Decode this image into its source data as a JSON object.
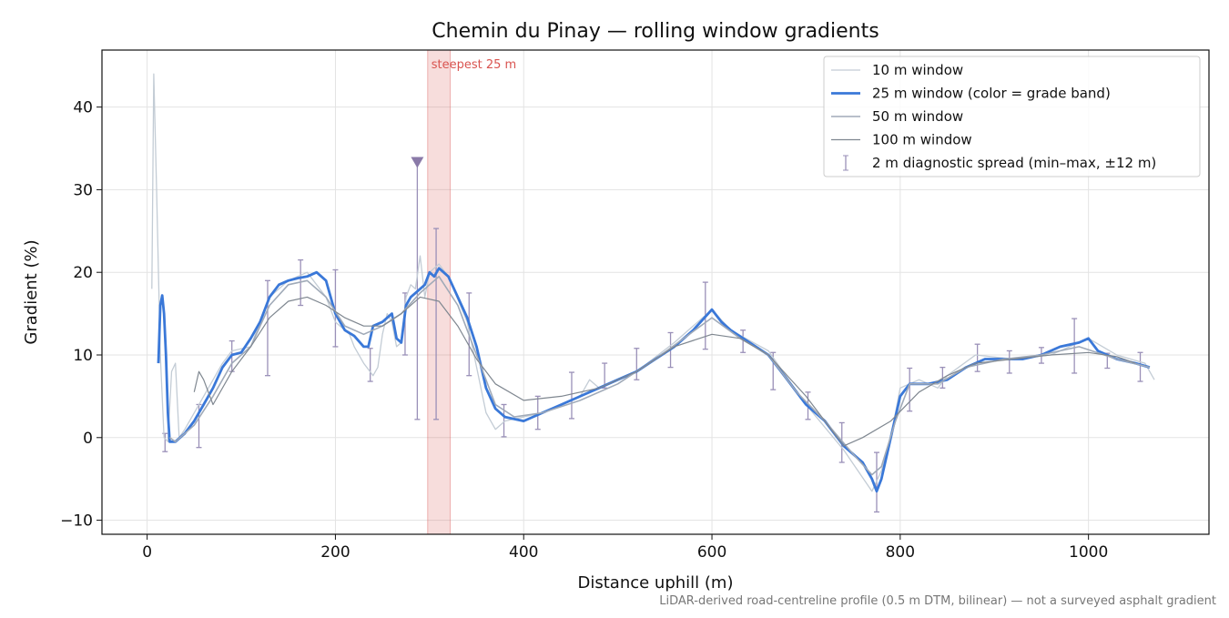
{
  "chart_data": {
    "type": "line",
    "title": "Chemin du Pinay — rolling window gradients",
    "xlabel": "Distance uphill (m)",
    "ylabel": "Gradient (%)",
    "footnote": "LiDAR-derived road-centreline profile (0.5 m DTM, bilinear) — not a surveyed asphalt gradient",
    "xlim": [
      -48,
      1128
    ],
    "ylim": [
      -11.7,
      46.9
    ],
    "xticks": [
      0,
      200,
      400,
      600,
      800,
      1000
    ],
    "yticks": [
      {
        "value": -10,
        "label": "−10"
      },
      0,
      10,
      20,
      30,
      40
    ],
    "grid": true,
    "legend": "upper right",
    "highlight": {
      "xrange": [
        298,
        322
      ],
      "label": "steepest 25 m",
      "color": "#d9534f"
    },
    "peak_marker": {
      "x": 287,
      "y": 33.3,
      "color": "#8a7aa8"
    },
    "series": [
      {
        "name": "10 m window",
        "color": "#c3ccd5",
        "width": 1.3,
        "x": [
          5,
          7,
          10,
          14,
          18,
          22,
          26,
          30,
          34,
          40,
          60,
          80,
          90,
          110,
          130,
          150,
          170,
          190,
          200,
          215,
          220,
          230,
          240,
          245,
          250,
          255,
          260,
          265,
          270,
          275,
          280,
          285,
          290,
          295,
          300,
          310,
          320,
          340,
          360,
          370,
          380,
          420,
          460,
          470,
          480,
          520,
          560,
          600,
          620,
          660,
          700,
          740,
          770,
          780,
          790,
          800,
          820,
          840,
          850,
          880,
          920,
          960,
          1000,
          1030,
          1060,
          1070
        ],
        "values": [
          18,
          44,
          30,
          10,
          0,
          -0.5,
          8,
          9,
          0,
          1,
          5,
          9,
          10.5,
          11,
          17,
          19,
          20,
          17,
          14,
          12.5,
          11,
          9,
          7.5,
          8.5,
          12.5,
          15,
          14,
          11,
          11.5,
          17,
          18.5,
          18,
          22,
          17,
          20,
          21,
          19.5,
          14,
          3,
          1,
          2,
          3,
          5,
          7,
          6,
          8,
          11.5,
          15.5,
          13,
          10.5,
          4,
          -1.5,
          -6.5,
          -4,
          0,
          6,
          7,
          6,
          7.5,
          10,
          9.5,
          10,
          12,
          10,
          9,
          7
        ]
      },
      {
        "name": "25 m window (color = grade band)",
        "color": "#3a78d8",
        "width": 2.8,
        "x": [
          12,
          14,
          16,
          18,
          20,
          22,
          24,
          30,
          40,
          50,
          60,
          70,
          80,
          90,
          100,
          110,
          120,
          130,
          140,
          150,
          160,
          170,
          180,
          190,
          200,
          210,
          220,
          230,
          235,
          240,
          250,
          260,
          265,
          270,
          275,
          280,
          290,
          295,
          300,
          305,
          310,
          320,
          330,
          340,
          350,
          360,
          370,
          380,
          400,
          420,
          440,
          460,
          480,
          500,
          520,
          540,
          560,
          580,
          600,
          610,
          620,
          640,
          660,
          680,
          700,
          720,
          740,
          760,
          770,
          775,
          780,
          790,
          800,
          810,
          830,
          850,
          870,
          890,
          910,
          930,
          950,
          970,
          990,
          1000,
          1010,
          1030,
          1050,
          1065
        ],
        "values": [
          9,
          16,
          17.2,
          15,
          10,
          3,
          -0.5,
          -0.5,
          0.5,
          2,
          4,
          6,
          8.5,
          10,
          10.3,
          12,
          14,
          17,
          18.5,
          19,
          19.3,
          19.5,
          20,
          19,
          15,
          13,
          12.3,
          11,
          11,
          13.5,
          14,
          15,
          12,
          11.5,
          16,
          17,
          18,
          18.5,
          20,
          19.5,
          20.5,
          19.5,
          17,
          14.5,
          11,
          6,
          3.5,
          2.5,
          2,
          3,
          4,
          5,
          6,
          7,
          8,
          9.5,
          11,
          13,
          15.5,
          14,
          13,
          11.5,
          10,
          7,
          4,
          2,
          -1,
          -3,
          -5,
          -6.5,
          -5,
          0,
          5,
          6.5,
          6.5,
          7,
          8.5,
          9.5,
          9.5,
          9.5,
          10,
          11,
          11.5,
          12,
          10.5,
          9.5,
          9,
          8.5
        ]
      },
      {
        "name": "50 m window",
        "color": "#a0aab8",
        "width": 1.6,
        "x": [
          24,
          30,
          50,
          70,
          90,
          110,
          130,
          150,
          170,
          190,
          210,
          230,
          250,
          270,
          290,
          310,
          330,
          350,
          370,
          390,
          420,
          460,
          500,
          540,
          570,
          600,
          630,
          660,
          690,
          720,
          750,
          770,
          780,
          795,
          810,
          840,
          870,
          910,
          950,
          990,
          1030,
          1065
        ],
        "values": [
          0,
          -0.5,
          1.5,
          5,
          9,
          11,
          16,
          18.5,
          19,
          17,
          13.5,
          12.5,
          13.5,
          15,
          17.5,
          19.5,
          16,
          10,
          4,
          2.5,
          3,
          4.5,
          6.5,
          9.5,
          12,
          14.5,
          12,
          10,
          5.5,
          2,
          -2,
          -4.5,
          -3.5,
          2,
          6.5,
          6.5,
          8.5,
          9.5,
          10,
          11,
          9.5,
          8.5
        ]
      },
      {
        "name": "100 m window",
        "color": "#7f8790",
        "width": 1.2,
        "x": [
          50,
          55,
          60,
          70,
          90,
          110,
          130,
          150,
          170,
          190,
          210,
          230,
          250,
          270,
          290,
          310,
          330,
          350,
          370,
          400,
          440,
          480,
          520,
          560,
          600,
          630,
          660,
          700,
          740,
          760,
          790,
          820,
          850,
          880,
          920,
          960,
          1000,
          1030,
          1050
        ],
        "values": [
          5.5,
          8,
          7,
          4,
          8,
          11,
          14.5,
          16.5,
          17,
          16,
          14.5,
          13.5,
          13.5,
          15,
          17,
          16.5,
          13.5,
          9.5,
          6.5,
          4.5,
          5,
          6,
          8,
          11,
          12.5,
          12,
          10,
          5,
          -1,
          0,
          2,
          5.5,
          7.5,
          9,
          9.5,
          10,
          10.3,
          9.8,
          9
        ]
      }
    ],
    "error_bars": {
      "name": "2 m diagnostic spread (min–max, ±12 m)",
      "color": "#9a90b8",
      "x": [
        19,
        55,
        90,
        128,
        163,
        200,
        237,
        274,
        287,
        307,
        342,
        379,
        415,
        451,
        486,
        520,
        556,
        593,
        633,
        665,
        702,
        738,
        775,
        810,
        845,
        882,
        916,
        950,
        985,
        1020,
        1055
      ],
      "low": [
        -1.7,
        -1.2,
        8,
        7.5,
        16,
        11,
        6.8,
        10,
        2.2,
        2.2,
        7.5,
        0.1,
        1,
        2.3,
        6,
        7,
        8.5,
        10.7,
        10.3,
        5.8,
        2.2,
        -3,
        -9,
        3.2,
        6,
        8,
        7.8,
        9,
        7.8,
        8.4,
        6.8
      ],
      "high": [
        0.5,
        4,
        11.7,
        19,
        21.5,
        20.3,
        10.8,
        17.5,
        33.3,
        25.3,
        17.5,
        4,
        5,
        7.9,
        9,
        10.8,
        12.7,
        18.8,
        13,
        10.3,
        5.5,
        1.8,
        -1.8,
        8.4,
        8.5,
        11.3,
        10.5,
        10.9,
        14.4,
        10.2,
        10.3
      ]
    }
  }
}
